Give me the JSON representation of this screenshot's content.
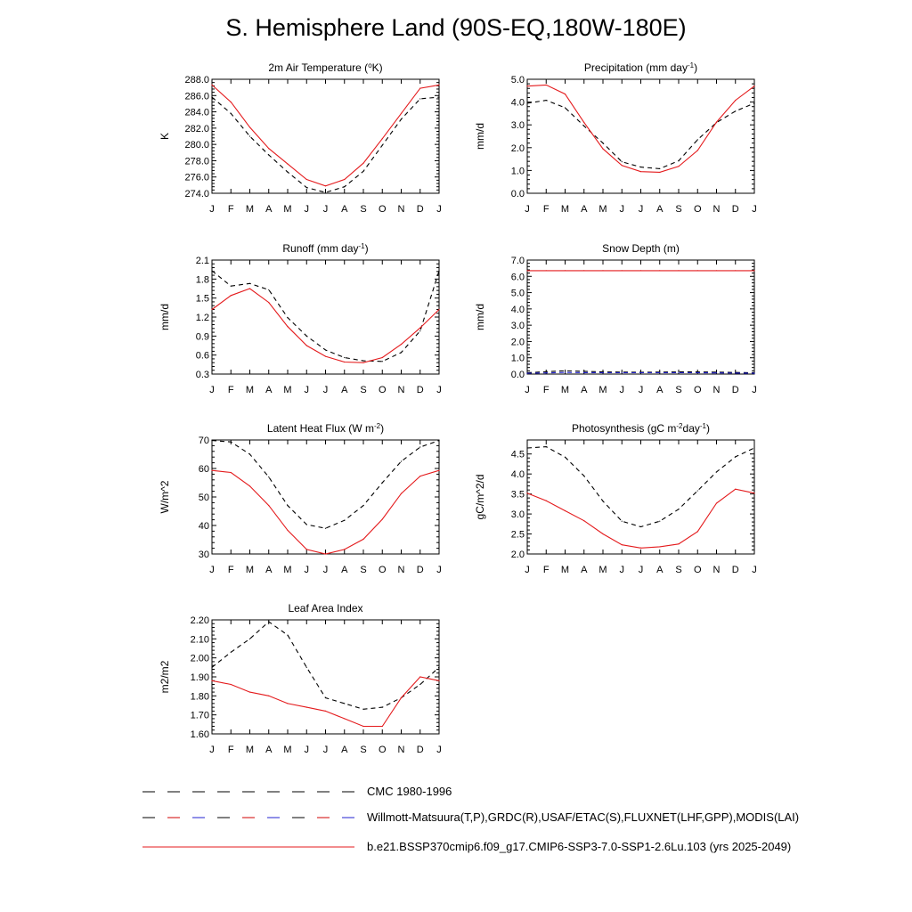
{
  "page": {
    "title": "S. Hemisphere Land (90S-EQ,180W-180E)"
  },
  "months": [
    "J",
    "F",
    "M",
    "A",
    "M",
    "J",
    "J",
    "A",
    "S",
    "O",
    "N",
    "D",
    "J"
  ],
  "legend": [
    {
      "label": "CMC 1980-1996",
      "color": "#000000",
      "style": "dashed"
    },
    {
      "label": "Willmott-Matsuura(T,P),GRDC(R),USAF/ETAC(S),FLUXNET(LHF,GPP),MODIS(LAI)",
      "color": "#000000",
      "style": "dashed-multicolor",
      "colors": [
        "#000000",
        "#d00000",
        "#2020d0"
      ]
    },
    {
      "label": "b.e21.BSSP370cmip6.f09_g17.CMIP6-SSP3-7.0-SSP1-2.6Lu.103 (yrs 2025-2049)",
      "color": "#e41a1c",
      "style": "solid"
    }
  ],
  "chart_data": [
    {
      "type": "line",
      "title": "2m Air Temperature (",
      "title_sup": "o",
      "title_suffix": "K)",
      "ylabel": "K",
      "ylim": [
        274,
        288
      ],
      "yticks": [
        274,
        276,
        278,
        280,
        282,
        284,
        286,
        288
      ],
      "ytick_decimals": 1,
      "series": [
        {
          "color": "#000000",
          "dash": true,
          "values": [
            285.8,
            283.8,
            281.0,
            278.7,
            276.6,
            274.7,
            274.1,
            274.8,
            276.7,
            279.9,
            283.1,
            285.6,
            285.8
          ]
        },
        {
          "color": "#e41a1c",
          "dash": false,
          "values": [
            287.3,
            285.2,
            282.1,
            279.5,
            277.6,
            275.7,
            274.9,
            275.7,
            277.7,
            280.7,
            283.8,
            286.9,
            287.3
          ]
        }
      ]
    },
    {
      "type": "line",
      "title": "Precipitation (mm day",
      "title_sup": "-1",
      "title_suffix": ")",
      "ylabel": "mm/d",
      "ylim": [
        0,
        5
      ],
      "yticks": [
        0,
        1,
        2,
        3,
        4,
        5
      ],
      "ytick_decimals": 1,
      "series": [
        {
          "color": "#000000",
          "dash": true,
          "values": [
            3.95,
            4.08,
            3.75,
            2.95,
            2.2,
            1.38,
            1.15,
            1.08,
            1.42,
            2.35,
            3.1,
            3.6,
            3.95
          ]
        },
        {
          "color": "#e41a1c",
          "dash": false,
          "values": [
            4.7,
            4.75,
            4.35,
            3.1,
            1.95,
            1.22,
            0.95,
            0.92,
            1.18,
            1.88,
            3.12,
            4.08,
            4.7
          ]
        }
      ]
    },
    {
      "type": "line",
      "title": "Runoff (mm day",
      "title_sup": "-1",
      "title_suffix": ")",
      "ylabel": "mm/d",
      "ylim": [
        0.3,
        2.1
      ],
      "yticks": [
        0.3,
        0.6,
        0.9,
        1.2,
        1.5,
        1.8,
        2.1
      ],
      "ytick_decimals": 1,
      "series": [
        {
          "color": "#000000",
          "dash": true,
          "values": [
            1.93,
            1.69,
            1.73,
            1.63,
            1.19,
            0.9,
            0.68,
            0.56,
            0.51,
            0.5,
            0.64,
            0.98,
            1.93
          ]
        },
        {
          "color": "#e41a1c",
          "dash": false,
          "values": [
            1.32,
            1.54,
            1.65,
            1.43,
            1.05,
            0.75,
            0.58,
            0.49,
            0.48,
            0.56,
            0.77,
            1.03,
            1.32
          ]
        }
      ]
    },
    {
      "type": "line",
      "title": "Snow Depth (m)",
      "title_sup": "",
      "title_suffix": "",
      "ylabel": "mm/d",
      "ylim": [
        0,
        7
      ],
      "yticks": [
        0,
        1,
        2,
        3,
        4,
        5,
        6,
        7
      ],
      "ytick_decimals": 1,
      "series": [
        {
          "color": "#000000",
          "dash": true,
          "values": [
            0.08,
            0.15,
            0.2,
            0.17,
            0.13,
            0.12,
            0.11,
            0.12,
            0.13,
            0.13,
            0.12,
            0.1,
            0.08
          ]
        },
        {
          "color": "#2020d0",
          "dash": true,
          "values": [
            0.05,
            0.07,
            0.1,
            0.09,
            0.08,
            0.08,
            0.08,
            0.08,
            0.08,
            0.08,
            0.07,
            0.06,
            0.05
          ]
        },
        {
          "color": "#e41a1c",
          "dash": false,
          "values": [
            6.35,
            6.35,
            6.35,
            6.35,
            6.35,
            6.35,
            6.35,
            6.35,
            6.35,
            6.35,
            6.35,
            6.35,
            6.35
          ]
        }
      ]
    },
    {
      "type": "line",
      "title": "Latent Heat Flux (W m",
      "title_sup": "-2",
      "title_suffix": ")",
      "ylabel": "W/m^2",
      "ylim": [
        30,
        70
      ],
      "yticks": [
        30,
        40,
        50,
        60,
        70
      ],
      "ytick_decimals": 0,
      "series": [
        {
          "color": "#000000",
          "dash": true,
          "values": [
            69.8,
            69.3,
            65.0,
            57.0,
            47.0,
            40.3,
            39.0,
            41.8,
            47.0,
            55.0,
            62.5,
            67.5,
            69.8
          ]
        },
        {
          "color": "#e41a1c",
          "dash": false,
          "values": [
            59.3,
            58.6,
            53.8,
            47.0,
            38.3,
            31.6,
            30.0,
            31.6,
            35.2,
            42.2,
            51.2,
            57.3,
            59.3
          ]
        }
      ]
    },
    {
      "type": "line",
      "title": "Photosynthesis (gC m",
      "title_sup": "-2",
      "title_suffix": "day",
      "title_sup2": "-1",
      "title_suffix2": ")",
      "ylabel": "gC/m^2/d",
      "ylim": [
        2.0,
        4.85
      ],
      "yticks": [
        2.0,
        2.5,
        3.0,
        3.5,
        4.0,
        4.5
      ],
      "ytick_decimals": 1,
      "series": [
        {
          "color": "#000000",
          "dash": true,
          "values": [
            4.65,
            4.68,
            4.42,
            3.95,
            3.32,
            2.82,
            2.68,
            2.82,
            3.12,
            3.58,
            4.05,
            4.43,
            4.65
          ]
        },
        {
          "color": "#e41a1c",
          "dash": false,
          "values": [
            3.52,
            3.33,
            3.08,
            2.83,
            2.5,
            2.23,
            2.15,
            2.18,
            2.25,
            2.56,
            3.27,
            3.62,
            3.52
          ]
        }
      ]
    },
    {
      "type": "line",
      "title": "Leaf Area Index",
      "title_sup": "",
      "title_suffix": "",
      "ylabel": "m2/m2",
      "ylim": [
        1.6,
        2.2
      ],
      "yticks": [
        1.6,
        1.7,
        1.8,
        1.9,
        2.0,
        2.1,
        2.2
      ],
      "ytick_decimals": 2,
      "series": [
        {
          "color": "#000000",
          "dash": true,
          "values": [
            1.95,
            2.03,
            2.1,
            2.19,
            2.12,
            1.95,
            1.79,
            1.76,
            1.73,
            1.74,
            1.79,
            1.86,
            1.95
          ]
        },
        {
          "color": "#e41a1c",
          "dash": false,
          "values": [
            1.88,
            1.86,
            1.82,
            1.8,
            1.76,
            1.74,
            1.72,
            1.68,
            1.64,
            1.64,
            1.79,
            1.9,
            1.88
          ]
        }
      ]
    }
  ]
}
